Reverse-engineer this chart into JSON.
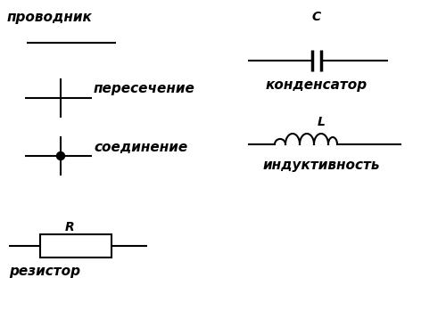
{
  "bg_color": "#ffffff",
  "line_color": "#000000",
  "text_color": "#000000",
  "figsize": [
    5.0,
    3.67
  ],
  "dpi": 100,
  "labels": {
    "provod": "проводник",
    "peresechenie": "пересечение",
    "soedinenie": "соединение",
    "rezistor": "резистор",
    "kondensator": "конденсатор",
    "induktivnost": "индуктивность",
    "R": "R",
    "C": "C",
    "L": "L"
  },
  "font_size_label": 11,
  "font_size_small": 10
}
